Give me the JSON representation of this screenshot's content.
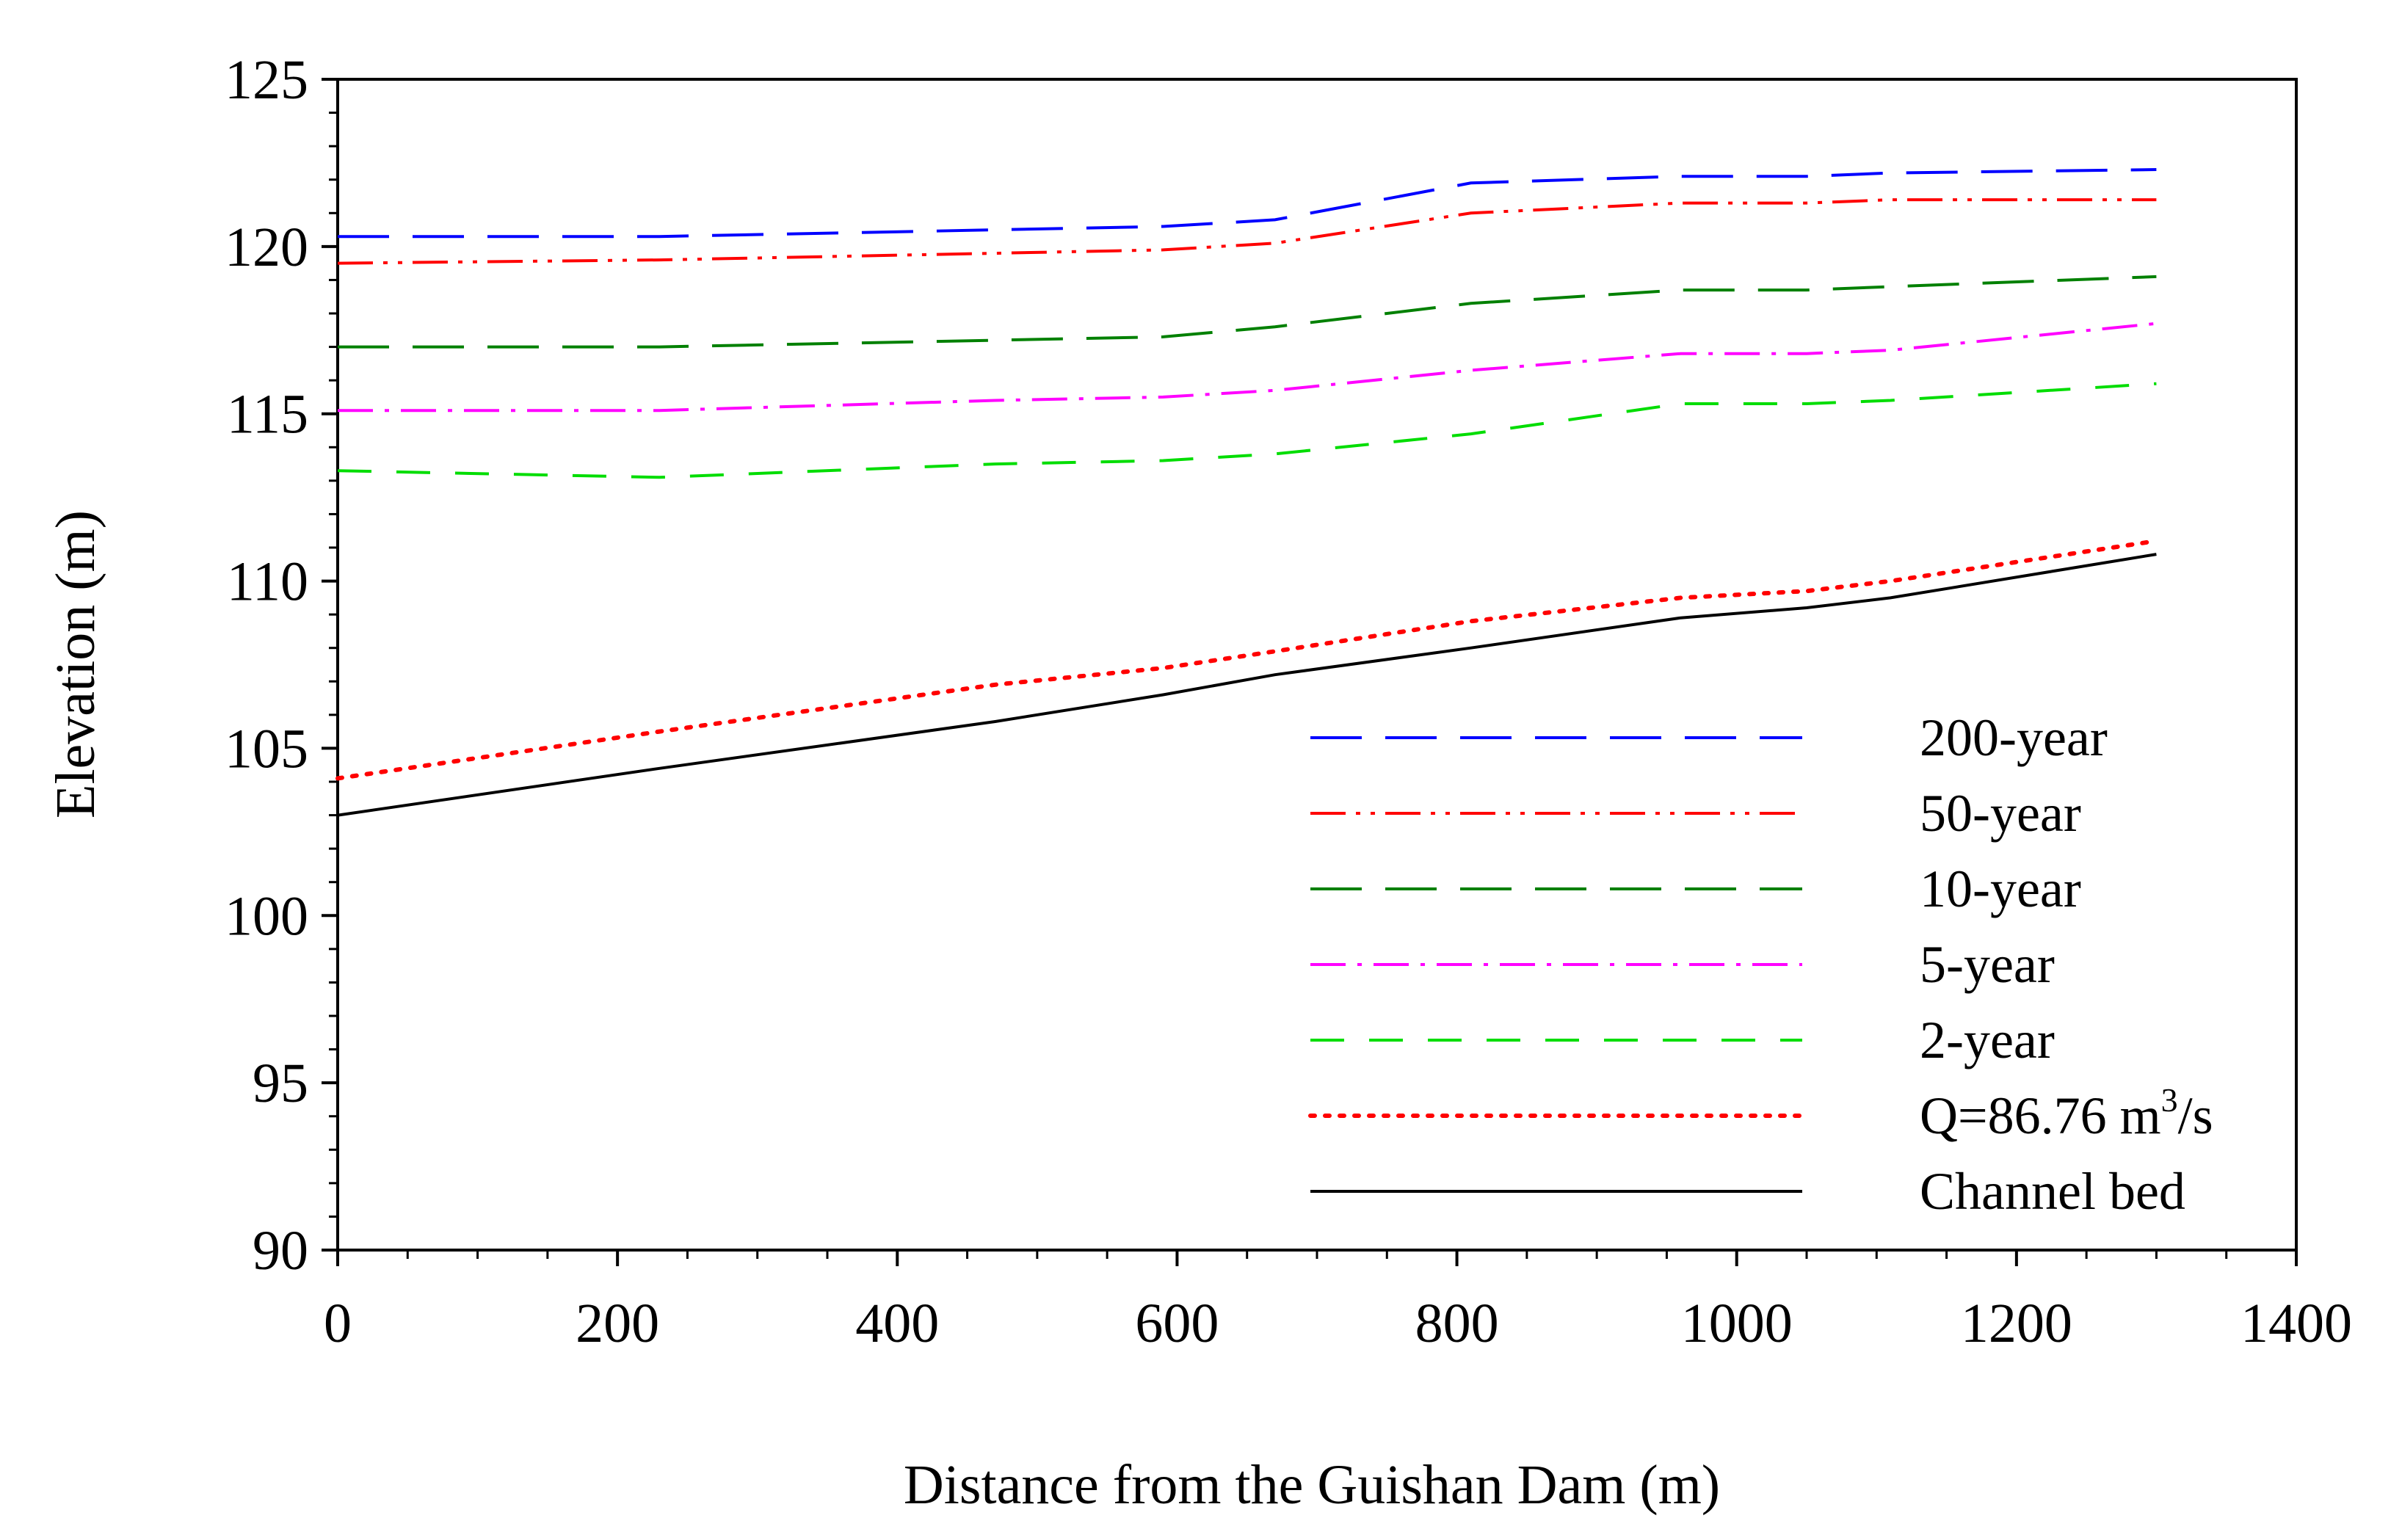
{
  "chart_data": {
    "type": "line",
    "title": "",
    "xlabel": "Distance from the Guishan Dam (m)",
    "ylabel": "Elevation (m)",
    "xlim": [
      0,
      1400
    ],
    "ylim": [
      90,
      125
    ],
    "xticks": [
      0,
      200,
      400,
      600,
      800,
      1000,
      1200,
      1400
    ],
    "yticks": [
      90,
      95,
      100,
      105,
      110,
      115,
      120,
      125
    ],
    "grid": false,
    "legend_position": "bottom-right",
    "x": [
      0,
      230,
      470,
      590,
      670,
      810,
      960,
      1050,
      1110,
      1300
    ],
    "series": [
      {
        "name": "200-year",
        "color": "#0000ff",
        "dash": "long-dash",
        "values": [
          120.3,
          120.3,
          120.5,
          120.6,
          120.8,
          121.9,
          122.1,
          122.1,
          122.2,
          122.3
        ]
      },
      {
        "name": "50-year",
        "color": "#ff0000",
        "dash": "dash-dot-dot",
        "values": [
          119.5,
          119.6,
          119.8,
          119.9,
          120.1,
          121.0,
          121.3,
          121.3,
          121.4,
          121.4
        ]
      },
      {
        "name": "10-year",
        "color": "#008000",
        "dash": "long-dash",
        "values": [
          117.0,
          117.0,
          117.2,
          117.3,
          117.6,
          118.3,
          118.7,
          118.7,
          118.8,
          119.1
        ]
      },
      {
        "name": "5-year",
        "color": "#ff00ff",
        "dash": "dash-dot",
        "values": [
          115.1,
          115.1,
          115.4,
          115.5,
          115.7,
          116.3,
          116.8,
          116.8,
          116.9,
          117.7
        ]
      },
      {
        "name": "2-year",
        "color": "#00dd00",
        "dash": "dash",
        "values": [
          113.3,
          113.1,
          113.5,
          113.6,
          113.8,
          114.4,
          115.3,
          115.3,
          115.4,
          115.9
        ]
      },
      {
        "name_prefix": "Q=86.76 m",
        "name_sup": "3",
        "name_suffix": "/s",
        "color": "#ff0000",
        "dash": "dot",
        "values": [
          104.1,
          105.5,
          106.9,
          107.4,
          107.9,
          108.8,
          109.5,
          109.7,
          110.0,
          111.2
        ]
      },
      {
        "name": "Channel bed",
        "color": "#000000",
        "dash": "solid",
        "values": [
          103.0,
          104.4,
          105.8,
          106.6,
          107.2,
          108.0,
          108.9,
          109.2,
          109.5,
          110.8
        ]
      }
    ]
  }
}
